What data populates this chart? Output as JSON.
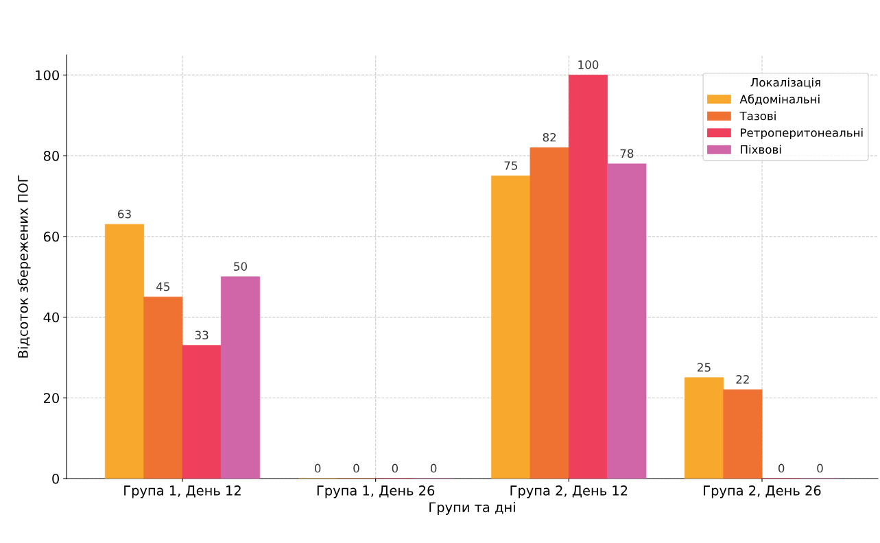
{
  "chart_data": {
    "type": "bar",
    "xlabel": "Групи та дні",
    "ylabel": "Відсоток збережених ПОГ",
    "legend_title": "Локалізація",
    "categories": [
      "Група 1, День 12",
      "Група 1, День 26",
      "Група 2, День 12",
      "Група 2, День 26"
    ],
    "series": [
      {
        "name": "Абдомінальні",
        "color": "#f9a82e",
        "values": [
          63,
          0,
          75,
          25
        ]
      },
      {
        "name": "Тазові",
        "color": "#f07232",
        "values": [
          45,
          0,
          82,
          22
        ]
      },
      {
        "name": "Ретроперитонеальні",
        "color": "#ee405c",
        "values": [
          33,
          0,
          100,
          0
        ]
      },
      {
        "name": "Піхвові",
        "color": "#d066a8",
        "values": [
          50,
          0,
          78,
          0
        ]
      }
    ],
    "ylim": [
      0,
      105
    ],
    "yticks": [
      0,
      20,
      40,
      60,
      80,
      100
    ],
    "grid": true,
    "legend": "top right",
    "data_labels": true
  }
}
